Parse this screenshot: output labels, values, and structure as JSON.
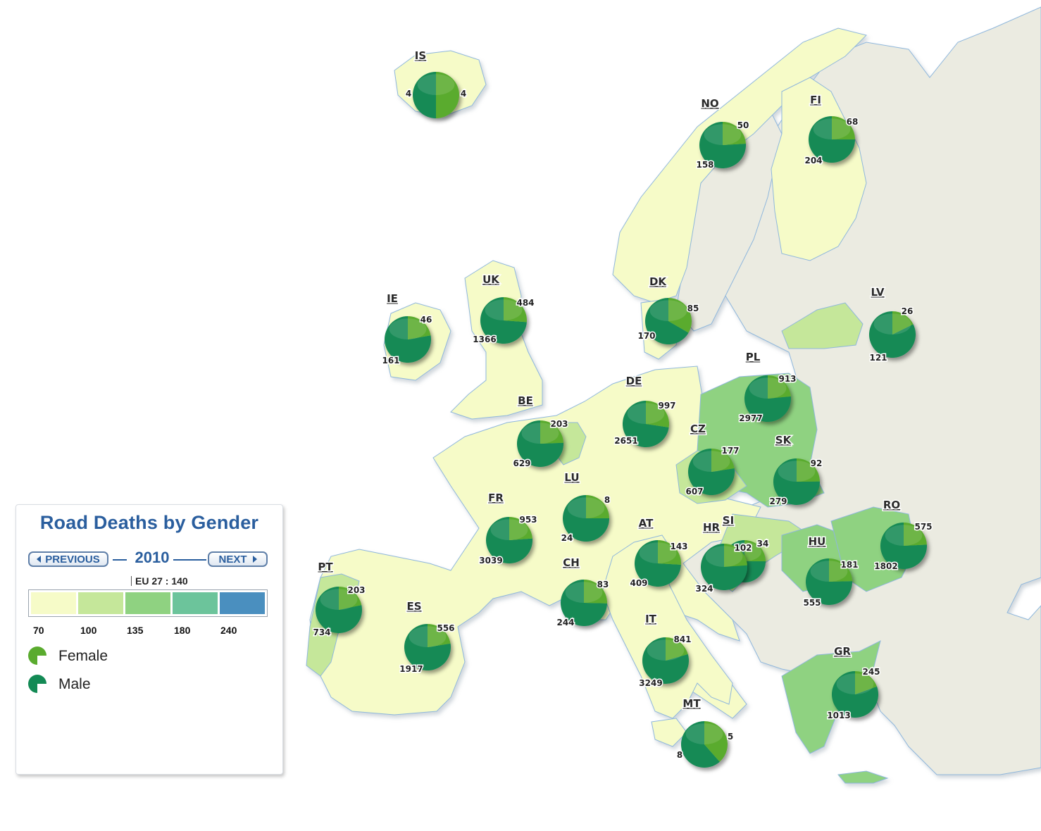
{
  "panel": {
    "title": "Road Deaths by Gender",
    "prev_label": "PREVIOUS",
    "next_label": "NEXT",
    "year": "2010",
    "eu_average": "EU 27 : 140",
    "scale_colors": [
      "#f6fbc8",
      "#c5e79a",
      "#8fd281",
      "#6cc49b",
      "#4a8fbf"
    ],
    "scale_ticks": [
      "70",
      "100",
      "135",
      "180",
      "240"
    ],
    "legend": [
      {
        "label": "Female",
        "icon": "female-pie-icon",
        "color": "#5aab2e"
      },
      {
        "label": "Male",
        "icon": "male-pie-icon",
        "color": "#138a55"
      }
    ]
  },
  "colors": {
    "sea": "#ffffff",
    "non_member": "#ebebe1",
    "border": "#b4b4b4",
    "coast": "#8fb7dc",
    "female": "#5aab2e",
    "male": "#138a55"
  },
  "countries": [
    {
      "code": "IS",
      "female": 4,
      "male": 4
    },
    {
      "code": "NO",
      "female": 50,
      "male": 158
    },
    {
      "code": "FI",
      "female": 68,
      "male": 204
    },
    {
      "code": "IE",
      "female": 46,
      "male": 161
    },
    {
      "code": "UK",
      "female": 484,
      "male": 1366
    },
    {
      "code": "DK",
      "female": 85,
      "male": 170
    },
    {
      "code": "LV",
      "female": 26,
      "male": 121
    },
    {
      "code": "PL",
      "female": 913,
      "male": 2977
    },
    {
      "code": "DE",
      "female": 997,
      "male": 2651
    },
    {
      "code": "BE",
      "female": 203,
      "male": 629
    },
    {
      "code": "CZ",
      "female": 177,
      "male": 607
    },
    {
      "code": "SK",
      "female": 92,
      "male": 279
    },
    {
      "code": "LU",
      "female": 8,
      "male": 24
    },
    {
      "code": "FR",
      "female": 953,
      "male": 3039
    },
    {
      "code": "AT",
      "female": 143,
      "male": 409
    },
    {
      "code": "SI",
      "female": 34,
      "male": 102
    },
    {
      "code": "HR",
      "female": 102,
      "male": 324
    },
    {
      "code": "HU",
      "female": 181,
      "male": 555
    },
    {
      "code": "RO",
      "female": 575,
      "male": 1802
    },
    {
      "code": "CH",
      "female": 83,
      "male": 244
    },
    {
      "code": "PT",
      "female": 203,
      "male": 734
    },
    {
      "code": "ES",
      "female": 556,
      "male": 1917
    },
    {
      "code": "IT",
      "female": 841,
      "male": 3249
    },
    {
      "code": "GR",
      "female": 245,
      "male": 1013
    },
    {
      "code": "MT",
      "female": 5,
      "male": 8
    }
  ]
}
